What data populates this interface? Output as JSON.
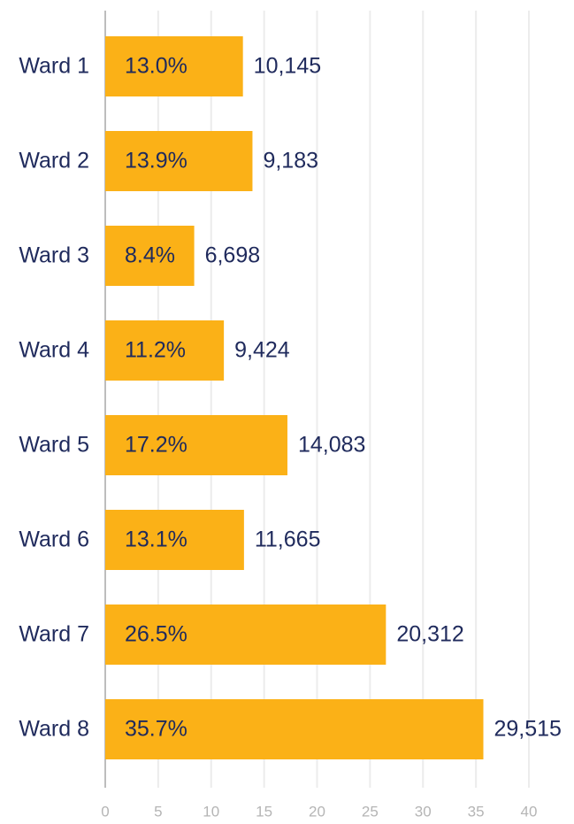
{
  "chart_data": {
    "type": "barh",
    "categories": [
      "Ward 1",
      "Ward 2",
      "Ward 3",
      "Ward 4",
      "Ward 5",
      "Ward 6",
      "Ward 7",
      "Ward 8"
    ],
    "values": [
      13.0,
      13.9,
      8.4,
      11.2,
      17.2,
      13.1,
      26.5,
      35.7
    ],
    "value_labels": [
      "13.0%",
      "13.9%",
      "8.4%",
      "11.2%",
      "17.2%",
      "13.1%",
      "26.5%",
      "35.7%"
    ],
    "counts": [
      10145,
      9183,
      6698,
      9424,
      14083,
      11665,
      20312,
      29515
    ],
    "count_labels": [
      "10,145",
      "9,183",
      "6,698",
      "9,424",
      "14,083",
      "11,665",
      "20,312",
      "29,515"
    ],
    "color": "#fbb117",
    "xlim": [
      0,
      40
    ],
    "xticks": [
      0,
      5,
      10,
      15,
      20,
      25,
      30,
      35,
      40
    ],
    "grid": true
  }
}
